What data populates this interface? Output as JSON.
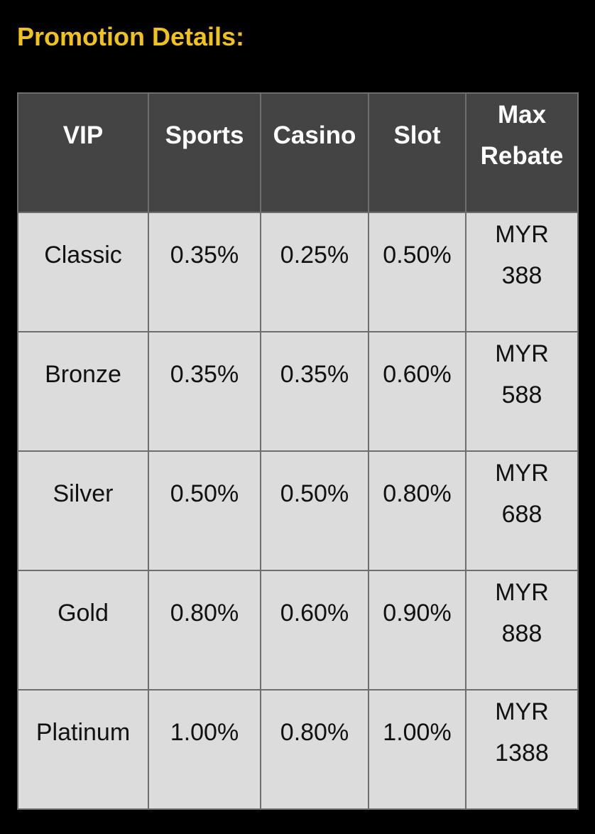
{
  "title": "Promotion Details:",
  "colors": {
    "title": "#f0c21a",
    "header_bg": "#444444",
    "cell_bg": "#dcdcdc",
    "border": "#6e6e6e"
  },
  "table": {
    "headers": [
      "VIP",
      "Sports",
      "Casino",
      "Slot",
      "Max Rebate"
    ],
    "rows": [
      [
        "Classic",
        "0.35%",
        "0.25%",
        "0.50%",
        "MYR 388"
      ],
      [
        "Bronze",
        "0.35%",
        "0.35%",
        "0.60%",
        "MYR 588"
      ],
      [
        "Silver",
        "0.50%",
        "0.50%",
        "0.80%",
        "MYR 688"
      ],
      [
        "Gold",
        "0.80%",
        "0.60%",
        "0.90%",
        "MYR 888"
      ],
      [
        "Platinum",
        "1.00%",
        "0.80%",
        "1.00%",
        "MYR 1388"
      ]
    ]
  }
}
